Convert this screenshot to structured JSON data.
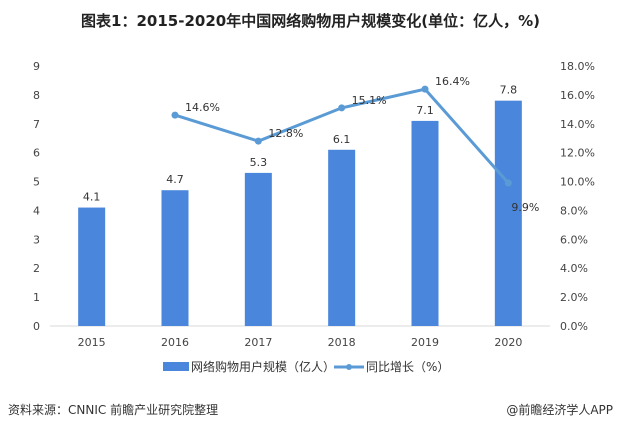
{
  "title": "图表1：2015-2020年中国网络购物用户规模变化(单位：亿人，%)",
  "source": "资料来源：CNNIC 前瞻产业研究院整理",
  "brand": "@前瞻经济学人APP",
  "chart_data": {
    "type": "bar+line",
    "categories": [
      "2015",
      "2016",
      "2017",
      "2018",
      "2019",
      "2020"
    ],
    "series": [
      {
        "name": "网络购物用户规模（亿人）",
        "type": "bar",
        "axis": "left",
        "values": [
          4.1,
          4.7,
          5.3,
          6.1,
          7.1,
          7.8
        ],
        "labels": [
          "4.1",
          "4.7",
          "5.3",
          "6.1",
          "7.1",
          "7.8"
        ],
        "color": "#4a86dc"
      },
      {
        "name": "同比增长（%）",
        "type": "line",
        "axis": "right",
        "values": [
          null,
          14.6,
          12.8,
          15.1,
          16.4,
          9.9
        ],
        "labels": [
          "",
          "14.6%",
          "12.8%",
          "15.1%",
          "16.4%",
          "9.9%"
        ],
        "color": "#5b9bd5"
      }
    ],
    "yleft": {
      "range": [
        0,
        9
      ],
      "ticks": [
        "0",
        "1",
        "2",
        "3",
        "4",
        "5",
        "6",
        "7",
        "8",
        "9"
      ]
    },
    "yright": {
      "range": [
        0,
        18
      ],
      "ticks": [
        "0.0%",
        "2.0%",
        "4.0%",
        "6.0%",
        "8.0%",
        "10.0%",
        "12.0%",
        "14.0%",
        "16.0%",
        "18.0%"
      ]
    },
    "grid": false,
    "legend": "bottom"
  }
}
